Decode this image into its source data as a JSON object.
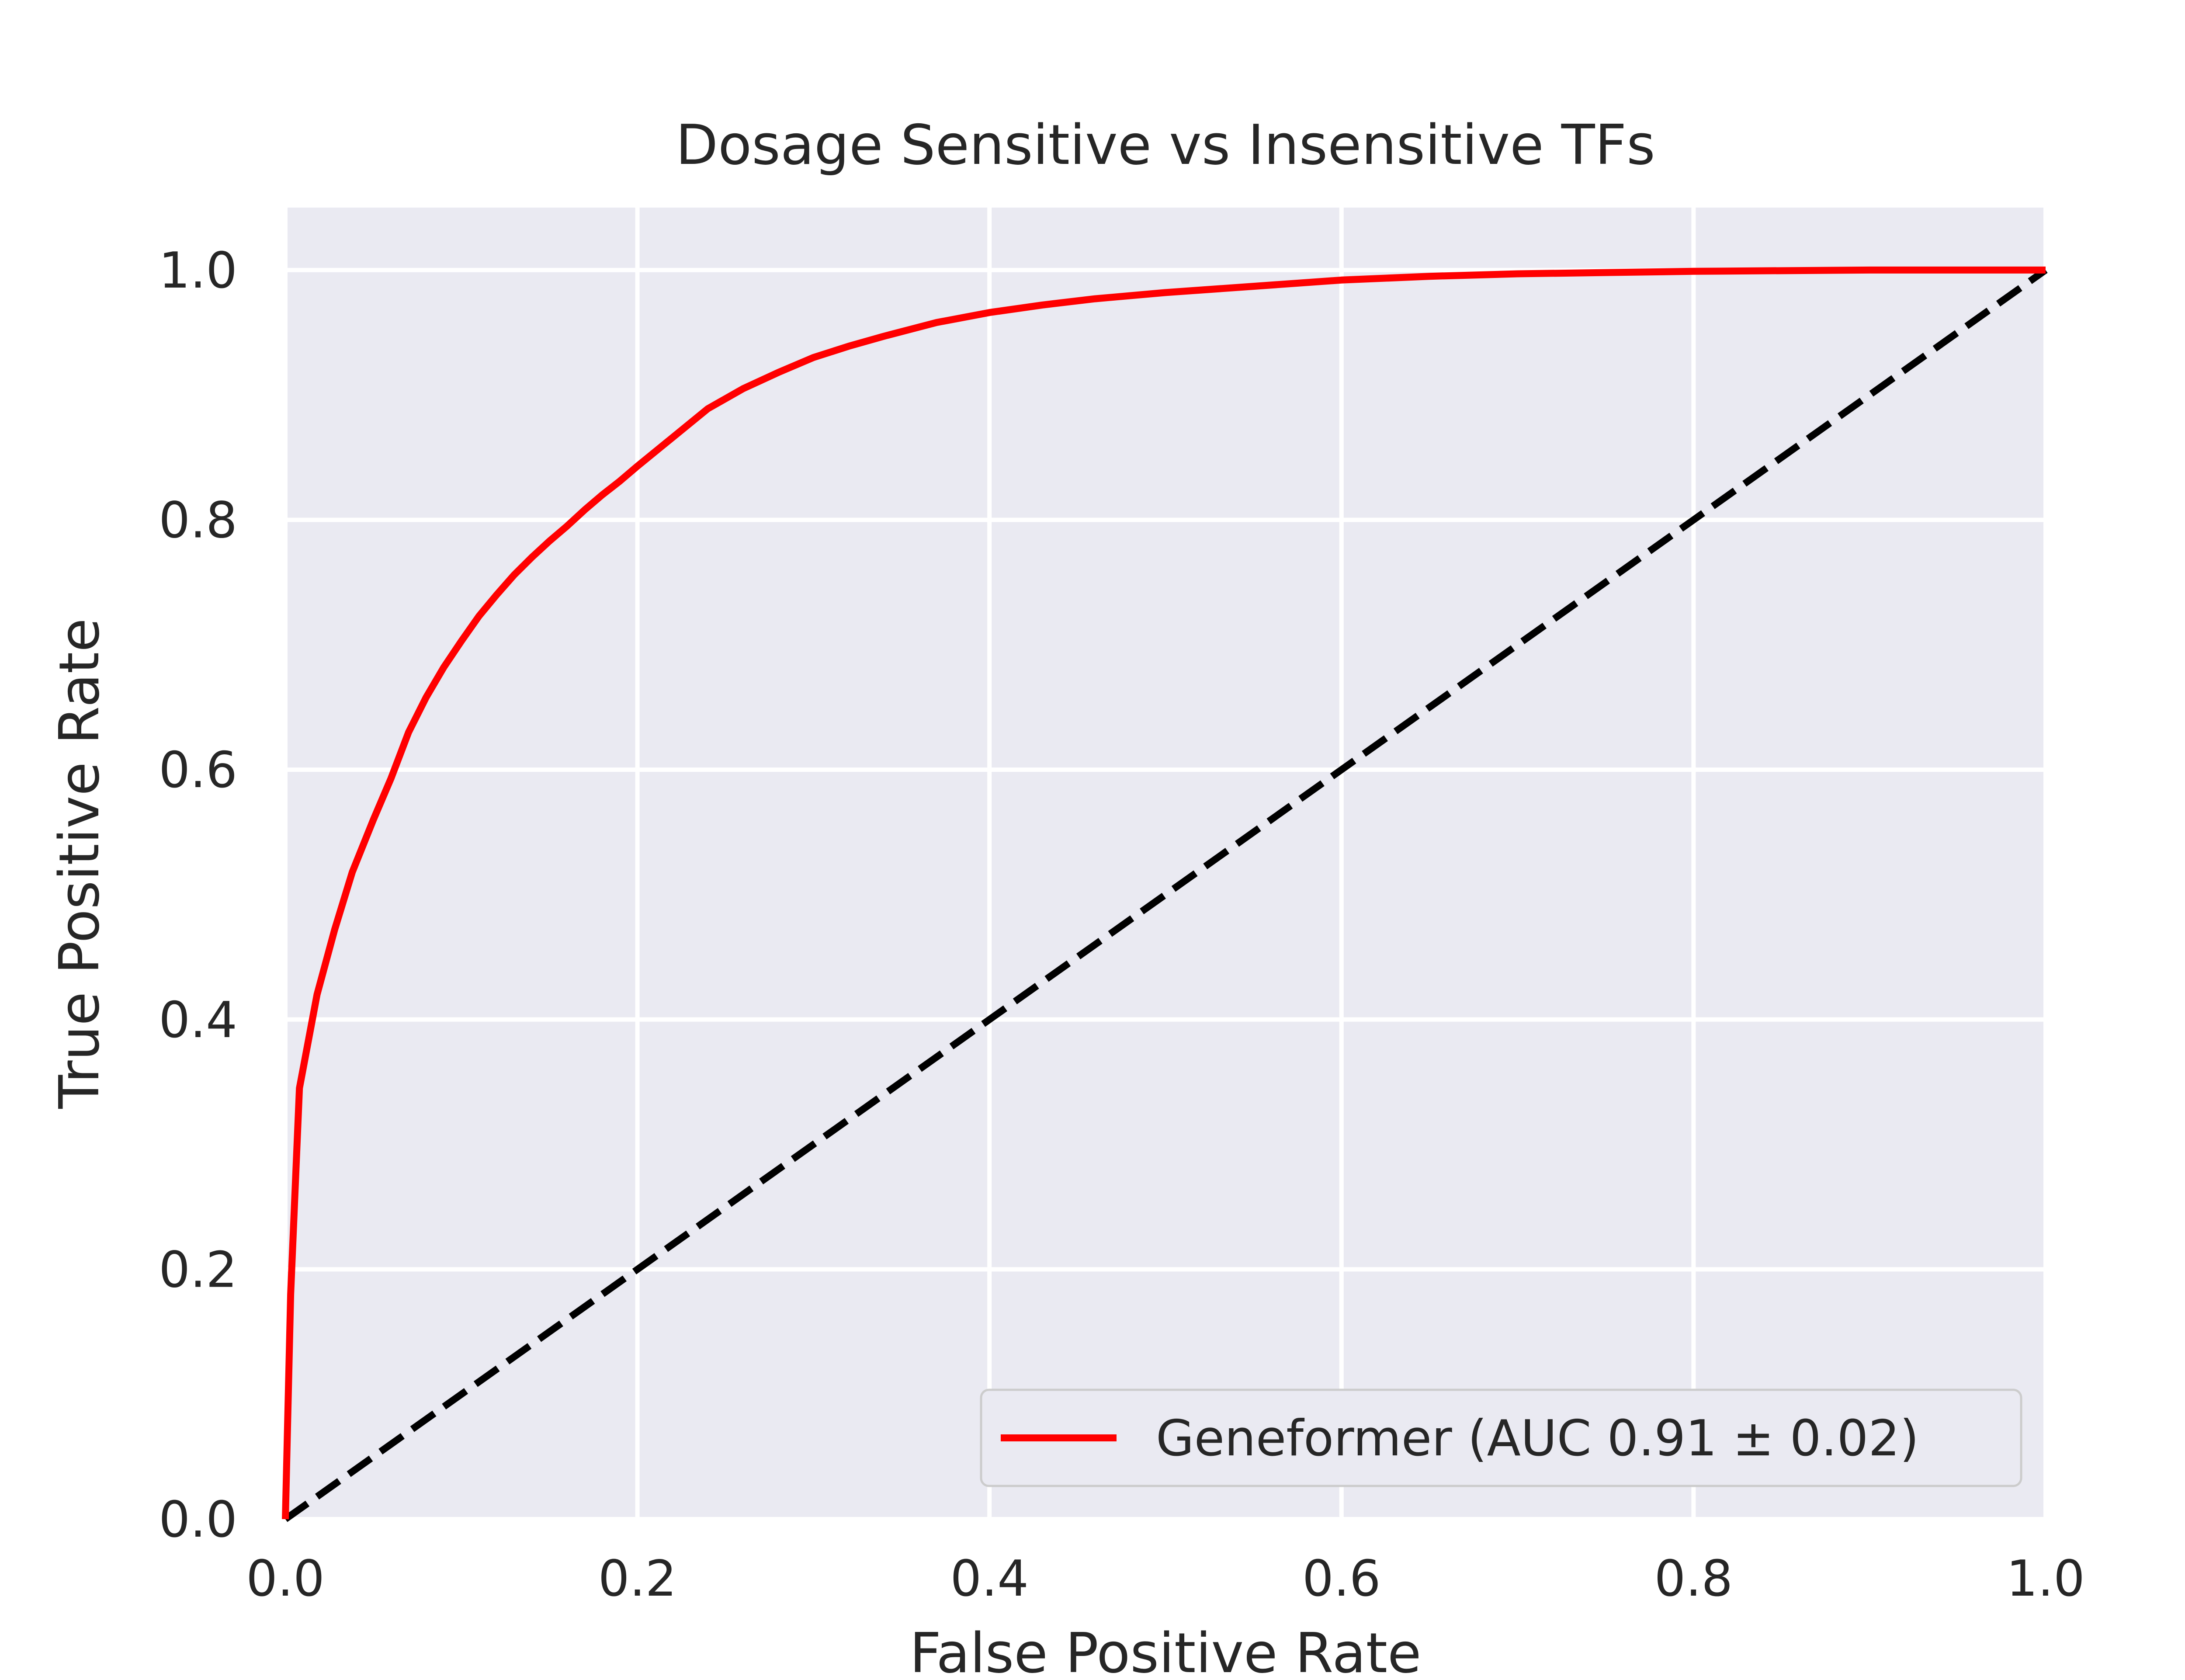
{
  "chart_data": {
    "type": "line",
    "title": "Dosage Sensitive vs Insensitive TFs",
    "xlabel": "False Positive Rate",
    "ylabel": "True Positive Rate",
    "xlim": [
      0.0,
      1.0
    ],
    "ylim": [
      0.0,
      1.05
    ],
    "xticks": [
      "0.0",
      "0.2",
      "0.4",
      "0.6",
      "0.8",
      "1.0"
    ],
    "yticks": [
      "0.0",
      "0.2",
      "0.4",
      "0.6",
      "0.8",
      "1.0"
    ],
    "grid": true,
    "legend_position": "lower-right",
    "background_color": "#eaeaf2",
    "grid_color": "#ffffff",
    "series": [
      {
        "name": "Geneformer (AUC 0.91 ± 0.02)",
        "color": "#ff0000",
        "style": "solid",
        "x": [
          0.0,
          0.003,
          0.008,
          0.018,
          0.028,
          0.038,
          0.05,
          0.06,
          0.07,
          0.08,
          0.09,
          0.1,
          0.11,
          0.12,
          0.13,
          0.14,
          0.15,
          0.16,
          0.17,
          0.18,
          0.19,
          0.2,
          0.22,
          0.24,
          0.26,
          0.28,
          0.3,
          0.32,
          0.34,
          0.37,
          0.4,
          0.43,
          0.46,
          0.5,
          0.55,
          0.6,
          0.65,
          0.7,
          0.8,
          0.9,
          1.0
        ],
        "y": [
          0.0,
          0.18,
          0.345,
          0.42,
          0.472,
          0.518,
          0.56,
          0.593,
          0.63,
          0.658,
          0.682,
          0.703,
          0.723,
          0.74,
          0.756,
          0.77,
          0.783,
          0.795,
          0.808,
          0.82,
          0.831,
          0.843,
          0.866,
          0.889,
          0.905,
          0.918,
          0.93,
          0.939,
          0.947,
          0.958,
          0.966,
          0.972,
          0.977,
          0.982,
          0.987,
          0.992,
          0.995,
          0.997,
          0.999,
          1.0,
          1.0
        ]
      },
      {
        "name": "",
        "color": "#000000",
        "style": "dashed",
        "x": [
          0.0,
          1.0
        ],
        "y": [
          0.0,
          1.0
        ]
      }
    ]
  }
}
